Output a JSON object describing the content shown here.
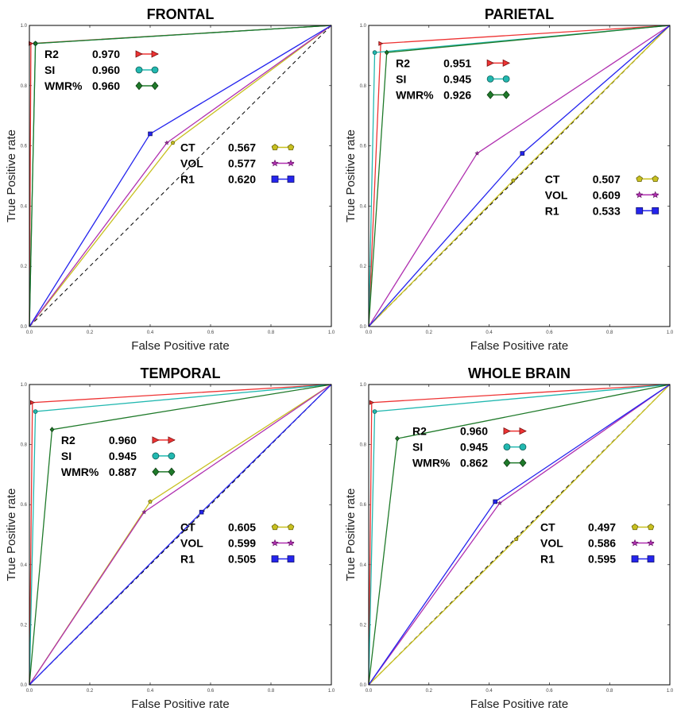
{
  "chart_data": [
    {
      "type": "line",
      "title": "FRONTAL",
      "xlabel": "False Positive rate",
      "ylabel": "True Positive rate",
      "xlim": [
        0,
        1
      ],
      "ylim": [
        0,
        1
      ],
      "xticks": [
        "0.0",
        "0.2",
        "0.4",
        "0.6",
        "0.8",
        "1.0"
      ],
      "yticks": [
        "0.0",
        "0.2",
        "0.4",
        "0.6",
        "0.8",
        "1.0"
      ],
      "diagonal": true,
      "series": [
        {
          "name": "R2",
          "auc": "0.970",
          "color": "#ee3333",
          "marker": "triangle",
          "x": [
            0,
            0.005,
            1
          ],
          "y": [
            0,
            0.94,
            1
          ]
        },
        {
          "name": "SI",
          "auc": "0.960",
          "color": "#22b8b0",
          "marker": "circle",
          "x": [
            0,
            0.02,
            1
          ],
          "y": [
            0,
            0.94,
            1
          ]
        },
        {
          "name": "WMR%",
          "auc": "0.960",
          "color": "#1f7a2a",
          "marker": "diamond",
          "x": [
            0,
            0.02,
            1
          ],
          "y": [
            0,
            0.94,
            1
          ]
        },
        {
          "name": "CT",
          "auc": "0.567",
          "color": "#c8c020",
          "marker": "pentagon",
          "x": [
            0,
            0.475,
            1
          ],
          "y": [
            0,
            0.61,
            1
          ]
        },
        {
          "name": "VOL",
          "auc": "0.577",
          "color": "#b030b0",
          "marker": "star",
          "x": [
            0,
            0.455,
            1
          ],
          "y": [
            0,
            0.61,
            1
          ]
        },
        {
          "name": "R1",
          "auc": "0.620",
          "color": "#2424ee",
          "marker": "square",
          "x": [
            0,
            0.4,
            1
          ],
          "y": [
            0,
            0.64,
            1
          ]
        }
      ],
      "legends": [
        {
          "position": "upper-left",
          "series": [
            "R2",
            "SI",
            "WMR%"
          ]
        },
        {
          "position": "center-right",
          "series": [
            "CT",
            "VOL",
            "R1"
          ]
        }
      ]
    },
    {
      "type": "line",
      "title": "PARIETAL",
      "xlabel": "False Positive rate",
      "ylabel": "True Positive rate",
      "xlim": [
        0,
        1
      ],
      "ylim": [
        0,
        1
      ],
      "xticks": [
        "0.0",
        "0.2",
        "0.4",
        "0.6",
        "0.8",
        "1.0"
      ],
      "yticks": [
        "0.0",
        "0.2",
        "0.4",
        "0.6",
        "0.8",
        "1.0"
      ],
      "diagonal": true,
      "series": [
        {
          "name": "R2",
          "auc": "0.951",
          "color": "#ee3333",
          "marker": "triangle",
          "x": [
            0,
            0.04,
            1
          ],
          "y": [
            0,
            0.94,
            1
          ]
        },
        {
          "name": "SI",
          "auc": "0.945",
          "color": "#22b8b0",
          "marker": "circle",
          "x": [
            0,
            0.02,
            1
          ],
          "y": [
            0,
            0.91,
            1
          ]
        },
        {
          "name": "WMR%",
          "auc": "0.926",
          "color": "#1f7a2a",
          "marker": "diamond",
          "x": [
            0,
            0.06,
            1
          ],
          "y": [
            0,
            0.91,
            1
          ]
        },
        {
          "name": "CT",
          "auc": "0.507",
          "color": "#c8c020",
          "marker": "pentagon",
          "x": [
            0,
            0.48,
            1
          ],
          "y": [
            0,
            0.485,
            1
          ]
        },
        {
          "name": "VOL",
          "auc": "0.609",
          "color": "#b030b0",
          "marker": "star",
          "x": [
            0,
            0.36,
            1
          ],
          "y": [
            0,
            0.575,
            1
          ]
        },
        {
          "name": "R1",
          "auc": "0.533",
          "color": "#2424ee",
          "marker": "square",
          "x": [
            0,
            0.51,
            1
          ],
          "y": [
            0,
            0.575,
            1
          ]
        }
      ],
      "legends": [
        {
          "position": "upper-left",
          "series": [
            "R2",
            "SI",
            "WMR%"
          ]
        },
        {
          "position": "center-right",
          "series": [
            "CT",
            "VOL",
            "R1"
          ]
        }
      ]
    },
    {
      "type": "line",
      "title": "TEMPORAL",
      "xlabel": "False Positive rate",
      "ylabel": "True Positive rate",
      "xlim": [
        0,
        1
      ],
      "ylim": [
        0,
        1
      ],
      "xticks": [
        "0.0",
        "0.2",
        "0.4",
        "0.6",
        "0.8",
        "1.0"
      ],
      "yticks": [
        "0.0",
        "0.2",
        "0.4",
        "0.6",
        "0.8",
        "1.0"
      ],
      "diagonal": true,
      "series": [
        {
          "name": "R2",
          "auc": "0.960",
          "color": "#ee3333",
          "marker": "triangle",
          "x": [
            0,
            0.01,
            1
          ],
          "y": [
            0,
            0.94,
            1
          ]
        },
        {
          "name": "SI",
          "auc": "0.945",
          "color": "#22b8b0",
          "marker": "circle",
          "x": [
            0,
            0.02,
            1
          ],
          "y": [
            0,
            0.91,
            1
          ]
        },
        {
          "name": "WMR%",
          "auc": "0.887",
          "color": "#1f7a2a",
          "marker": "diamond",
          "x": [
            0,
            0.075,
            1
          ],
          "y": [
            0,
            0.85,
            1
          ]
        },
        {
          "name": "CT",
          "auc": "0.605",
          "color": "#c8c020",
          "marker": "pentagon",
          "x": [
            0,
            0.4,
            1
          ],
          "y": [
            0,
            0.61,
            1
          ]
        },
        {
          "name": "VOL",
          "auc": "0.599",
          "color": "#b030b0",
          "marker": "star",
          "x": [
            0,
            0.38,
            1
          ],
          "y": [
            0,
            0.575,
            1
          ]
        },
        {
          "name": "R1",
          "auc": "0.505",
          "color": "#2424ee",
          "marker": "square",
          "x": [
            0,
            0.57,
            1
          ],
          "y": [
            0,
            0.575,
            1
          ]
        }
      ],
      "legends": [
        {
          "position": "upper-left",
          "series": [
            "R2",
            "SI",
            "WMR%"
          ]
        },
        {
          "position": "center-right",
          "series": [
            "CT",
            "VOL",
            "R1"
          ]
        }
      ]
    },
    {
      "type": "line",
      "title": "WHOLE BRAIN",
      "xlabel": "False Positive rate",
      "ylabel": "True Positive rate",
      "xlim": [
        0,
        1
      ],
      "ylim": [
        0,
        1
      ],
      "xticks": [
        "0.0",
        "0.2",
        "0.4",
        "0.6",
        "0.8",
        "1.0"
      ],
      "yticks": [
        "0.0",
        "0.2",
        "0.4",
        "0.6",
        "0.8",
        "1.0"
      ],
      "diagonal": true,
      "series": [
        {
          "name": "R2",
          "auc": "0.960",
          "color": "#ee3333",
          "marker": "triangle",
          "x": [
            0,
            0.01,
            1
          ],
          "y": [
            0,
            0.94,
            1
          ]
        },
        {
          "name": "SI",
          "auc": "0.945",
          "color": "#22b8b0",
          "marker": "circle",
          "x": [
            0,
            0.02,
            1
          ],
          "y": [
            0,
            0.91,
            1
          ]
        },
        {
          "name": "WMR%",
          "auc": "0.862",
          "color": "#1f7a2a",
          "marker": "diamond",
          "x": [
            0,
            0.095,
            1
          ],
          "y": [
            0,
            0.82,
            1
          ]
        },
        {
          "name": "CT",
          "auc": "0.497",
          "color": "#c8c020",
          "marker": "pentagon",
          "x": [
            0,
            0.49,
            1
          ],
          "y": [
            0,
            0.485,
            1
          ]
        },
        {
          "name": "VOL",
          "auc": "0.586",
          "color": "#b030b0",
          "marker": "star",
          "x": [
            0,
            0.435,
            1
          ],
          "y": [
            0,
            0.605,
            1
          ]
        },
        {
          "name": "R1",
          "auc": "0.595",
          "color": "#2424ee",
          "marker": "square",
          "x": [
            0,
            0.42,
            1
          ],
          "y": [
            0,
            0.61,
            1
          ]
        }
      ],
      "legends": [
        {
          "position": "upper-left",
          "series": [
            "R2",
            "SI",
            "WMR%"
          ]
        },
        {
          "position": "center-right",
          "series": [
            "CT",
            "VOL",
            "R1"
          ]
        }
      ]
    }
  ]
}
